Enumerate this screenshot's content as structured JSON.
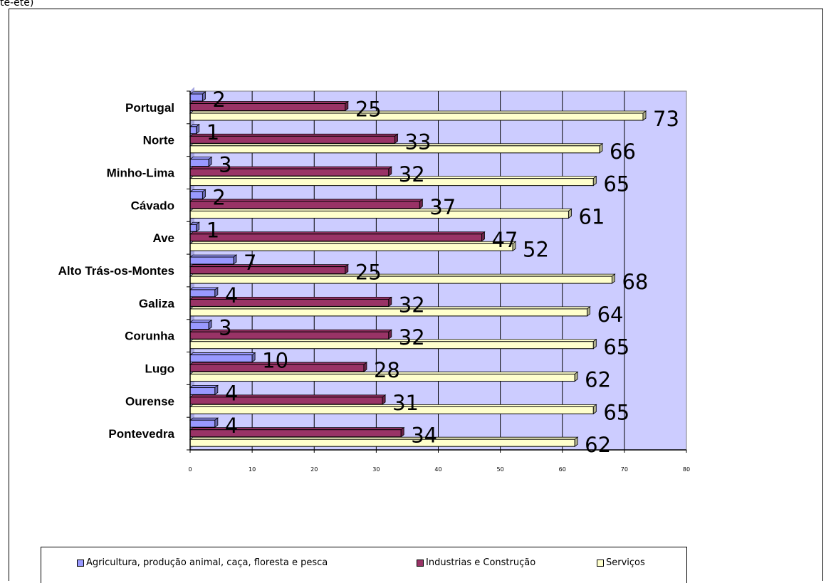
{
  "page": {
    "fragment_text": "te-ete)"
  },
  "colors": {
    "plot_bg": "#ccccff",
    "agricultura": "#9999ff",
    "industrias": "#993366",
    "servicos": "#ffffcc",
    "grid": "#000000"
  },
  "legend": [
    {
      "label": "Agricultura, produção animal, caça, floresta e pesca",
      "color": "#9999ff"
    },
    {
      "label": "Industrias e Construção",
      "color": "#993366"
    },
    {
      "label": "Serviços",
      "color": "#ffffcc"
    }
  ],
  "chart_data": {
    "type": "bar",
    "orientation": "horizontal",
    "categories": [
      "Portugal",
      "Norte",
      "Minho-Lima",
      "Cávado",
      "Ave",
      "Alto Trás-os-Montes",
      "Galiza",
      "Corunha",
      "Lugo",
      "Ourense",
      "Pontevedra"
    ],
    "series": [
      {
        "name": "Agricultura, produção animal, caça, floresta e pesca",
        "values": [
          2,
          1,
          3,
          2,
          1,
          7,
          4,
          3,
          10,
          4,
          4
        ],
        "color": "#9999ff"
      },
      {
        "name": "Industrias e Construção",
        "values": [
          25,
          33,
          32,
          37,
          47,
          25,
          32,
          32,
          28,
          31,
          34
        ],
        "color": "#993366"
      },
      {
        "name": "Serviços",
        "values": [
          73,
          66,
          65,
          61,
          52,
          68,
          64,
          65,
          62,
          65,
          62
        ],
        "color": "#ffffcc"
      }
    ],
    "xlim": [
      0,
      80
    ],
    "xticks": [
      "0",
      "10",
      "20",
      "30",
      "40",
      "50",
      "60",
      "70",
      "80"
    ],
    "grid": true,
    "data_labels": true,
    "legend_position": "bottom",
    "title": "",
    "xlabel": "",
    "ylabel": ""
  }
}
